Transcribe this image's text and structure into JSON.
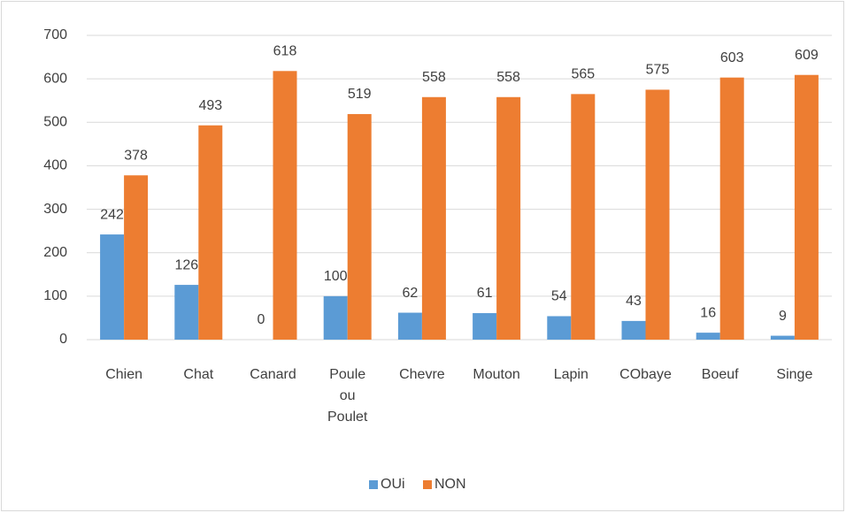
{
  "chart_data": {
    "type": "bar",
    "categories": [
      "Chien",
      "Chat",
      "Canard",
      "Poule ou Poulet",
      "Chevre",
      "Mouton",
      "Lapin",
      "CObaye",
      "Boeuf",
      "Singe"
    ],
    "series": [
      {
        "name": "OUi",
        "color": "#5b9bd5",
        "values": [
          242,
          126,
          0,
          100,
          62,
          61,
          54,
          43,
          16,
          9
        ]
      },
      {
        "name": "NON",
        "color": "#ed7d31",
        "values": [
          378,
          493,
          618,
          519,
          558,
          558,
          565,
          575,
          603,
          609
        ]
      }
    ],
    "ylim": [
      0,
      700
    ],
    "yticks": [
      0,
      100,
      200,
      300,
      400,
      500,
      600,
      700
    ],
    "grid": true,
    "legend": "bottom"
  }
}
